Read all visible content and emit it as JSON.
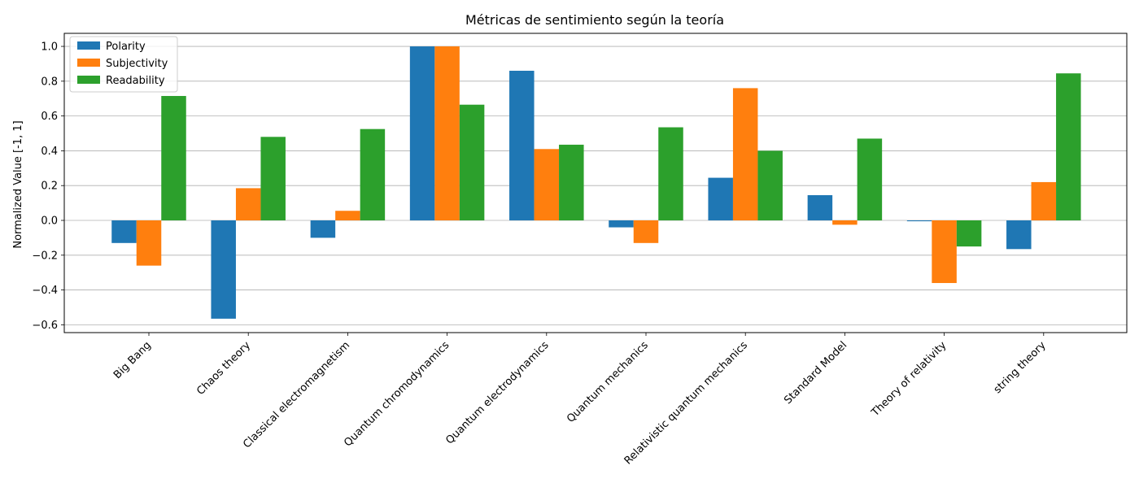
{
  "chart_data": {
    "type": "bar",
    "title": "Métricas de sentimiento según la teoría",
    "xlabel": "",
    "ylabel": "Normalized Value [-1, 1]",
    "ylim": [
      -0.645,
      1.075
    ],
    "yticks": [
      -0.6,
      -0.4,
      -0.2,
      0.0,
      0.2,
      0.4,
      0.6,
      0.8,
      1.0
    ],
    "ytick_labels": [
      "−0.6",
      "−0.4",
      "−0.2",
      "0.0",
      "0.2",
      "0.4",
      "0.6",
      "0.8",
      "1.0"
    ],
    "grid": "horizontal",
    "legend_position": "top-left",
    "categories": [
      "Big Bang",
      "Chaos theory",
      "Classical electromagnetism",
      "Quantum chromodynamics",
      "Quantum electrodynamics",
      "Quantum mechanics",
      "Relativistic quantum mechanics",
      "Standard Model",
      "Theory of relativity",
      "string theory"
    ],
    "series": [
      {
        "name": "Polarity",
        "color": "#1f77b4",
        "values": [
          -0.13,
          -0.565,
          -0.1,
          1.0,
          0.86,
          -0.04,
          0.245,
          0.145,
          -0.005,
          -0.165
        ]
      },
      {
        "name": "Subjectivity",
        "color": "#ff7f0e",
        "values": [
          -0.26,
          0.185,
          0.055,
          1.0,
          0.41,
          -0.13,
          0.76,
          -0.025,
          -0.36,
          0.22
        ]
      },
      {
        "name": "Readability",
        "color": "#2ca02c",
        "values": [
          0.715,
          0.48,
          0.525,
          0.665,
          0.435,
          0.535,
          0.4,
          0.47,
          -0.15,
          0.845
        ]
      }
    ]
  }
}
